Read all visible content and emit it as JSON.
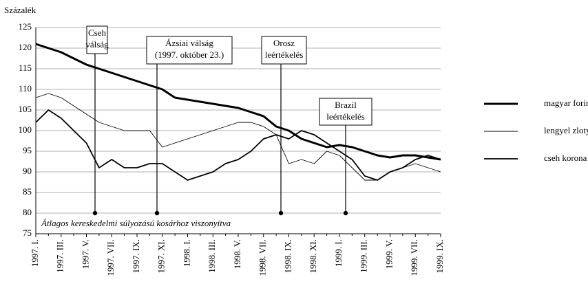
{
  "chart_data": {
    "type": "line",
    "y_label": "Százalék",
    "note": "Átlagos kereskedelmi súlyozású kosárhoz viszonyítva",
    "categories": [
      "1997. I.",
      null,
      "1997. III.",
      null,
      "1997. V.",
      null,
      "1997. VII.",
      null,
      "1997. IX.",
      null,
      "1997. XI.",
      null,
      "1998. I.",
      null,
      "1998. III.",
      null,
      "1998. V.",
      null,
      "1998. VII.",
      null,
      "1998. IX.",
      null,
      "1998. XI.",
      null,
      "1999. I.",
      null,
      "1999. III.",
      null,
      "1999. V.",
      null,
      "1999. VII.",
      null,
      "1999. IX."
    ],
    "series": [
      {
        "name": "magyar forint",
        "color": "#000",
        "width": 3,
        "values": [
          121,
          120,
          119,
          117.5,
          116,
          115,
          114,
          113,
          112,
          111,
          110,
          108,
          107.5,
          107,
          106.5,
          106,
          105.5,
          104.5,
          103.5,
          101,
          100,
          98,
          97,
          96,
          96.5,
          96,
          95,
          94,
          93.5,
          94,
          94,
          93.5,
          93
        ]
      },
      {
        "name": "lengyel zloty",
        "color": "#000",
        "width": 0.9,
        "values": [
          108,
          109,
          108,
          106,
          104,
          102,
          101,
          100,
          100,
          100,
          96,
          97,
          98,
          99,
          100,
          101,
          102,
          102,
          101,
          99,
          92,
          93,
          92,
          95,
          94,
          91,
          88,
          88,
          90,
          91,
          92,
          91,
          90
        ]
      },
      {
        "name": "cseh korona",
        "color": "#000",
        "width": 1.8,
        "values": [
          102,
          105,
          103,
          100,
          97,
          91,
          93,
          91,
          91,
          92,
          92,
          90,
          88,
          89,
          90,
          92,
          93,
          95,
          98,
          99,
          98,
          100,
          99,
          97,
          95,
          93,
          89,
          88,
          90,
          91,
          93,
          94,
          93
        ]
      }
    ],
    "annotations": [
      {
        "lines": [
          "Cseh",
          "válság"
        ]
      },
      {
        "lines": [
          "Ázsiai válság",
          "(1997. október 23.)"
        ]
      },
      {
        "lines": [
          "Orosz",
          "leértékelés"
        ]
      },
      {
        "lines": [
          "Brazil",
          "leértékelés"
        ]
      }
    ],
    "ylim": [
      75,
      125
    ],
    "yticks": [
      75,
      80,
      85,
      90,
      95,
      100,
      105,
      110,
      115,
      120,
      125
    ],
    "grid": true
  }
}
